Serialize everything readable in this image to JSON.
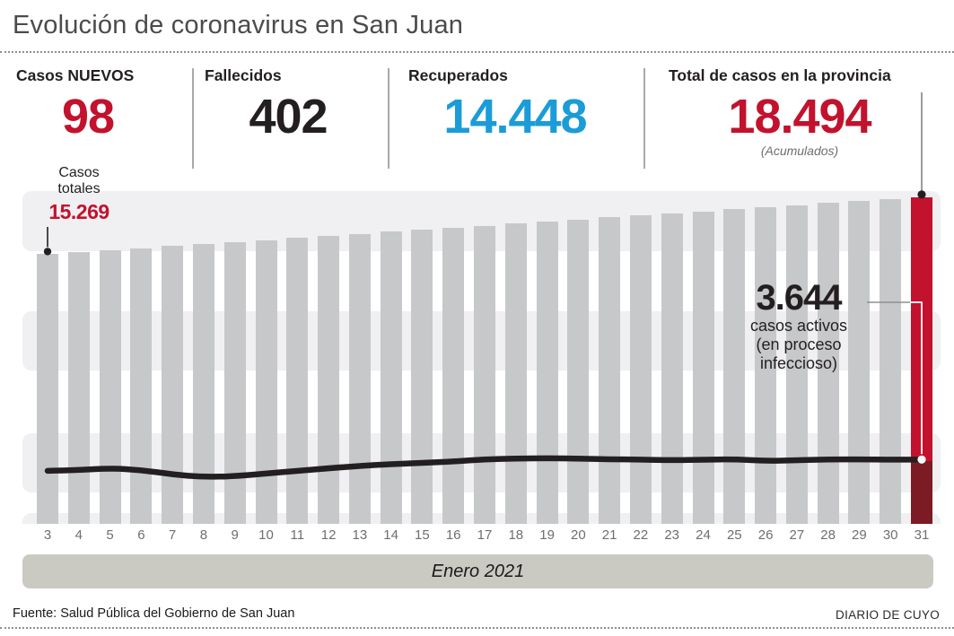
{
  "title": "Evolución de coronavirus en San Juan",
  "stats": [
    {
      "label": "Casos NUEVOS",
      "value": "98",
      "color": "#c2122d"
    },
    {
      "label": "Fallecidos",
      "value": "402",
      "color": "#231f20"
    },
    {
      "label": "Recuperados",
      "value": "14.448",
      "color": "#1b9cd8"
    },
    {
      "label": "Total de casos en la provincia",
      "value": "18.494",
      "note": "(Acumulados)",
      "color": "#c2122d"
    }
  ],
  "chart_data": {
    "type": "bar",
    "title": "Evolución de coronavirus en San Juan",
    "x_axis_label": "Enero 2021",
    "categories": [
      3,
      4,
      5,
      6,
      7,
      8,
      9,
      10,
      11,
      12,
      13,
      14,
      15,
      16,
      17,
      18,
      19,
      20,
      21,
      22,
      23,
      24,
      25,
      26,
      27,
      28,
      29,
      30,
      31
    ],
    "series": [
      {
        "name": "Casos totales (acumulados)",
        "type": "bar",
        "color": "#c6c8ca",
        "last_bar_color": "#c2122d",
        "last_bar_below_line_color": "#7c1b24",
        "values": [
          15269,
          15385,
          15501,
          15617,
          15732,
          15848,
          15964,
          16080,
          16196,
          16312,
          16427,
          16543,
          16659,
          16775,
          16891,
          17007,
          17122,
          17238,
          17354,
          17470,
          17586,
          17702,
          17817,
          17933,
          18049,
          18165,
          18281,
          18396,
          18494
        ]
      },
      {
        "name": "Casos activos (en proceso infeccioso)",
        "type": "line",
        "color": "#231f20",
        "values": [
          3000,
          3050,
          3150,
          3050,
          2800,
          2650,
          2700,
          2850,
          3000,
          3150,
          3280,
          3380,
          3450,
          3530,
          3660,
          3700,
          3720,
          3700,
          3660,
          3640,
          3600,
          3630,
          3660,
          3560,
          3600,
          3650,
          3660,
          3630,
          3644
        ]
      }
    ],
    "annotations": {
      "first_bar": {
        "label_lines": [
          "Casos",
          "totales"
        ],
        "value": "15.269"
      },
      "active": {
        "value": "3.644",
        "label_lines": [
          "casos activos",
          "(en proceso",
          "infeccioso)"
        ]
      },
      "last_bar_value": "18.494"
    },
    "ylim": [
      0,
      18494
    ],
    "grid": "horizontal-bands",
    "legend": "none"
  },
  "footer": {
    "source": "Fuente: Salud Pública del Gobierno de San Juan",
    "credit": "DIARIO DE CUYO"
  }
}
